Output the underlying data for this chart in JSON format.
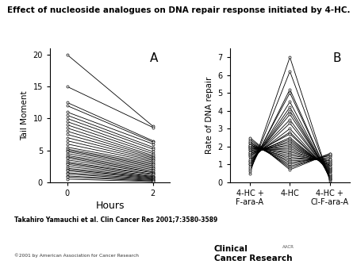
{
  "title": "Effect of nucleoside analogues on DNA repair response initiated by 4-HC.",
  "title_fontsize": 7.5,
  "panel_A_label": "A",
  "panel_B_label": "B",
  "panel_A_ylabel": "Tail Moment",
  "panel_A_xlabel": "Hours",
  "panel_A_xticks": [
    0,
    2
  ],
  "panel_A_yticks": [
    0,
    5,
    10,
    15,
    20
  ],
  "panel_A_ylim": [
    0,
    21
  ],
  "panel_B_ylabel": "Rate of DNA repair",
  "panel_B_xtick_labels": [
    "4-HC +\nF-ara-A",
    "4-HC",
    "4-HC +\nCl-F-ara-A"
  ],
  "panel_B_yticks": [
    0,
    1,
    2,
    3,
    4,
    5,
    6,
    7
  ],
  "panel_B_ylim": [
    0,
    7.5
  ],
  "citation": "Takahiro Yamauchi et al. Clin Cancer Res 2001;7:3580-3589",
  "copyright": "©2001 by American Association for Cancer Research",
  "ccr_logo": "Clinical\nCancer Research",
  "panel_A_data": [
    [
      20,
      8.8
    ],
    [
      15,
      8.6
    ],
    [
      12.5,
      6.5
    ],
    [
      12,
      6.3
    ],
    [
      11,
      6.0
    ],
    [
      10.5,
      5.5
    ],
    [
      10,
      5.2
    ],
    [
      9.5,
      4.8
    ],
    [
      9,
      4.5
    ],
    [
      8.5,
      4.2
    ],
    [
      8,
      4.0
    ],
    [
      7.5,
      3.8
    ],
    [
      7,
      3.6
    ],
    [
      6.5,
      3.4
    ],
    [
      6,
      3.2
    ],
    [
      5.5,
      3.0
    ],
    [
      5.2,
      2.8
    ],
    [
      5.0,
      2.6
    ],
    [
      4.8,
      2.4
    ],
    [
      4.5,
      2.2
    ],
    [
      4.2,
      2.0
    ],
    [
      4.0,
      1.8
    ],
    [
      3.8,
      1.6
    ],
    [
      3.5,
      1.5
    ],
    [
      3.2,
      1.3
    ],
    [
      3.0,
      1.2
    ],
    [
      2.8,
      1.0
    ],
    [
      2.5,
      0.9
    ],
    [
      2.2,
      0.8
    ],
    [
      2.0,
      0.7
    ],
    [
      1.8,
      0.6
    ],
    [
      1.5,
      0.5
    ],
    [
      1.3,
      0.4
    ],
    [
      1.0,
      0.3
    ],
    [
      0.8,
      0.2
    ],
    [
      0.5,
      0.1
    ]
  ],
  "panel_B_data": [
    [
      0.5,
      7.0,
      0.1
    ],
    [
      0.6,
      6.2,
      0.15
    ],
    [
      0.7,
      5.2,
      0.18
    ],
    [
      0.8,
      5.0,
      0.2
    ],
    [
      0.9,
      4.5,
      0.25
    ],
    [
      1.0,
      4.2,
      0.3
    ],
    [
      1.0,
      4.0,
      0.35
    ],
    [
      1.1,
      3.8,
      0.4
    ],
    [
      1.2,
      3.5,
      0.45
    ],
    [
      1.2,
      3.3,
      0.5
    ],
    [
      1.3,
      3.0,
      0.55
    ],
    [
      1.4,
      2.8,
      0.6
    ],
    [
      1.5,
      2.7,
      0.65
    ],
    [
      1.5,
      2.5,
      0.7
    ],
    [
      1.6,
      2.4,
      0.75
    ],
    [
      1.6,
      2.3,
      0.8
    ],
    [
      1.7,
      2.2,
      0.85
    ],
    [
      1.7,
      2.1,
      0.9
    ],
    [
      1.8,
      2.0,
      0.95
    ],
    [
      1.8,
      1.9,
      1.0
    ],
    [
      1.9,
      1.8,
      1.0
    ],
    [
      1.9,
      1.7,
      1.1
    ],
    [
      2.0,
      1.6,
      1.1
    ],
    [
      2.0,
      1.5,
      1.2
    ],
    [
      2.0,
      1.4,
      1.2
    ],
    [
      2.1,
      1.3,
      1.3
    ],
    [
      2.1,
      1.2,
      1.3
    ],
    [
      2.2,
      1.1,
      1.4
    ],
    [
      2.2,
      1.0,
      1.5
    ],
    [
      2.3,
      0.9,
      1.5
    ],
    [
      2.4,
      0.8,
      1.6
    ],
    [
      2.5,
      0.7,
      1.6
    ]
  ]
}
